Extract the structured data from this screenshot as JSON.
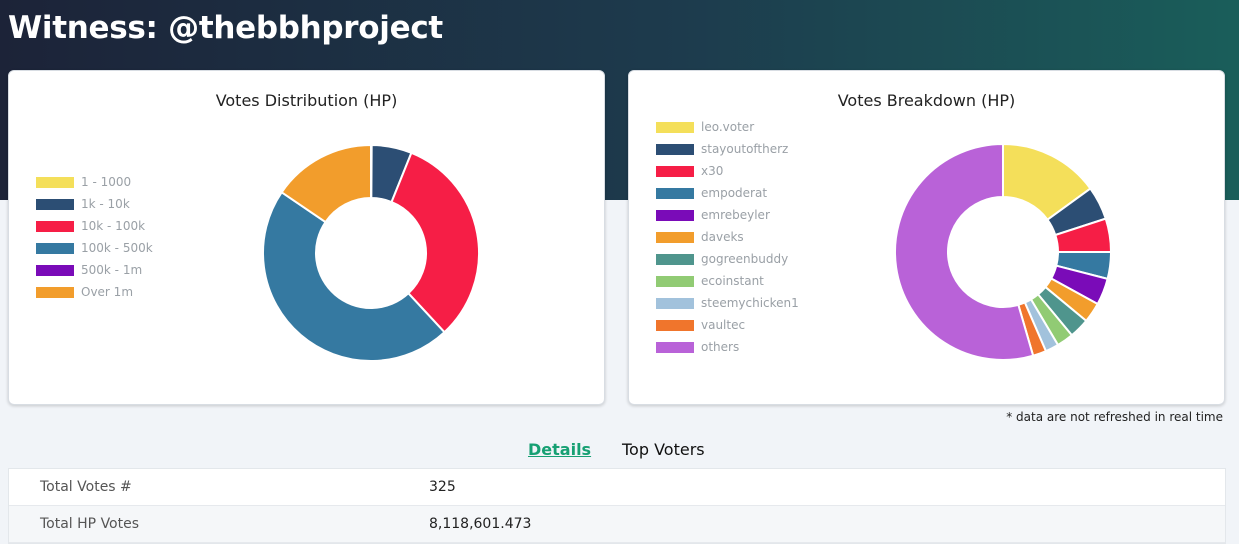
{
  "header": {
    "title": "Witness: @thebbhproject"
  },
  "distribution": {
    "title": "Votes Distribution (HP)",
    "chart_data": {
      "type": "pie",
      "categories": [
        "1 - 1000",
        "1k - 10k",
        "10k - 100k",
        "100k - 500k",
        "500k - 1m",
        "Over 1m"
      ],
      "values": [
        0.1,
        6,
        32,
        46.4,
        0,
        15.5
      ],
      "colors": [
        "#f4df5a",
        "#2c4e74",
        "#f61e46",
        "#3579a1",
        "#7a0bb8",
        "#f29d2c"
      ],
      "legend_position": "left"
    }
  },
  "breakdown": {
    "title": "Votes Breakdown (HP)",
    "chart_data": {
      "type": "pie",
      "categories": [
        "leo.voter",
        "stayoutoftherz",
        "x30",
        "empoderat",
        "emrebeyler",
        "daveks",
        "gogreenbuddy",
        "ecoinstant",
        "steemychicken1",
        "vaultec",
        "others"
      ],
      "values": [
        15,
        5,
        5,
        4,
        4,
        3,
        3,
        2.5,
        2,
        2,
        54.5
      ],
      "colors": [
        "#f4df5a",
        "#2c4e74",
        "#f61e46",
        "#3579a1",
        "#7a0bb8",
        "#f29d2c",
        "#4f958d",
        "#91cb74",
        "#a2c2dc",
        "#f0752c",
        "#b962d8"
      ],
      "legend_position": "top-left"
    }
  },
  "note": "* data are not refreshed in real time",
  "tabs": [
    {
      "label": "Details",
      "active": true
    },
    {
      "label": "Top Voters",
      "active": false
    }
  ],
  "details": [
    {
      "label": "Total Votes #",
      "value": "325"
    },
    {
      "label": "Total HP Votes",
      "value": "8,118,601.473"
    }
  ]
}
